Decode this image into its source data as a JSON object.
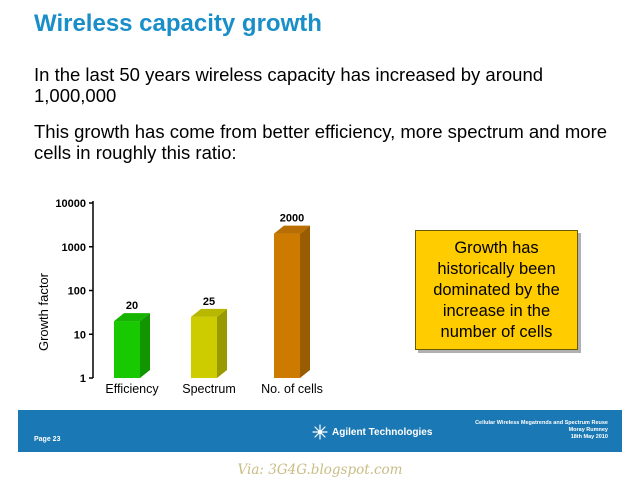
{
  "slide": {
    "title": "Wireless capacity growth",
    "paragraph1": "In the last 50 years wireless capacity has increased by around 1,000,000",
    "paragraph2": "This growth has come from better efficiency, more spectrum and more cells in roughly this ratio:",
    "callout": "Growth has historically been dominated by the increase in the number of cells"
  },
  "chart_data": {
    "type": "bar",
    "title": "",
    "ylabel": "Growth factor",
    "xlabel": "",
    "y_scale": "log",
    "ylim": [
      1,
      10000
    ],
    "yticks": [
      "1",
      "10",
      "100",
      "1000",
      "10000"
    ],
    "categories": [
      "Efficiency",
      "Spectrum",
      "No. of cells"
    ],
    "values": [
      20,
      25,
      2000
    ],
    "data_labels": [
      "20",
      "25",
      "2000"
    ],
    "colors": [
      "#18c800",
      "#cccc00",
      "#cc7a00"
    ],
    "grid": false
  },
  "footer": {
    "page": "Page 23",
    "company": "Agilent Technologies",
    "meta_line1": "Cellular Wireless Megatrends and Spectrum Reuse",
    "meta_line2": "Moray Rumney",
    "meta_line3": "18th May 2010",
    "band_color": "#1a78b4"
  },
  "watermark": "Via: 3G4G.blogspot.com"
}
